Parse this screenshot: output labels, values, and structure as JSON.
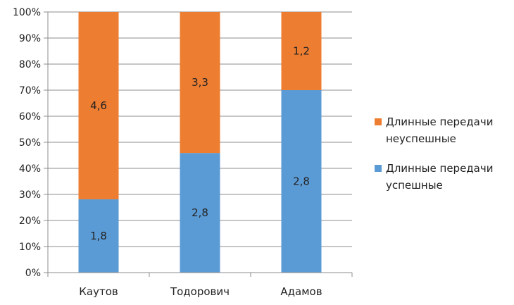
{
  "chart_data": {
    "type": "bar",
    "stacked": true,
    "normalized": true,
    "categories": [
      "Каутов",
      "Тодорович",
      "Адамов"
    ],
    "series": [
      {
        "name": "Длинные передачи успешные",
        "legend_lines": [
          "Длинные передачи",
          "успешные"
        ],
        "values": [
          1.8,
          2.8,
          2.8
        ],
        "labels": [
          "1,8",
          "2,8",
          "2,8"
        ],
        "color": "#5b9bd5"
      },
      {
        "name": "Длинные передачи неуспешные",
        "legend_lines": [
          "Длинные передачи",
          "неуспешные"
        ],
        "values": [
          4.6,
          3.3,
          1.2
        ],
        "labels": [
          "4,6",
          "3,3",
          "1,2"
        ],
        "color": "#ed7d31"
      }
    ],
    "y_ticks": [
      "0%",
      "10%",
      "20%",
      "30%",
      "40%",
      "50%",
      "60%",
      "70%",
      "80%",
      "90%",
      "100%"
    ],
    "ylim": [
      0,
      100
    ],
    "grid": true,
    "legend_position": "right"
  }
}
